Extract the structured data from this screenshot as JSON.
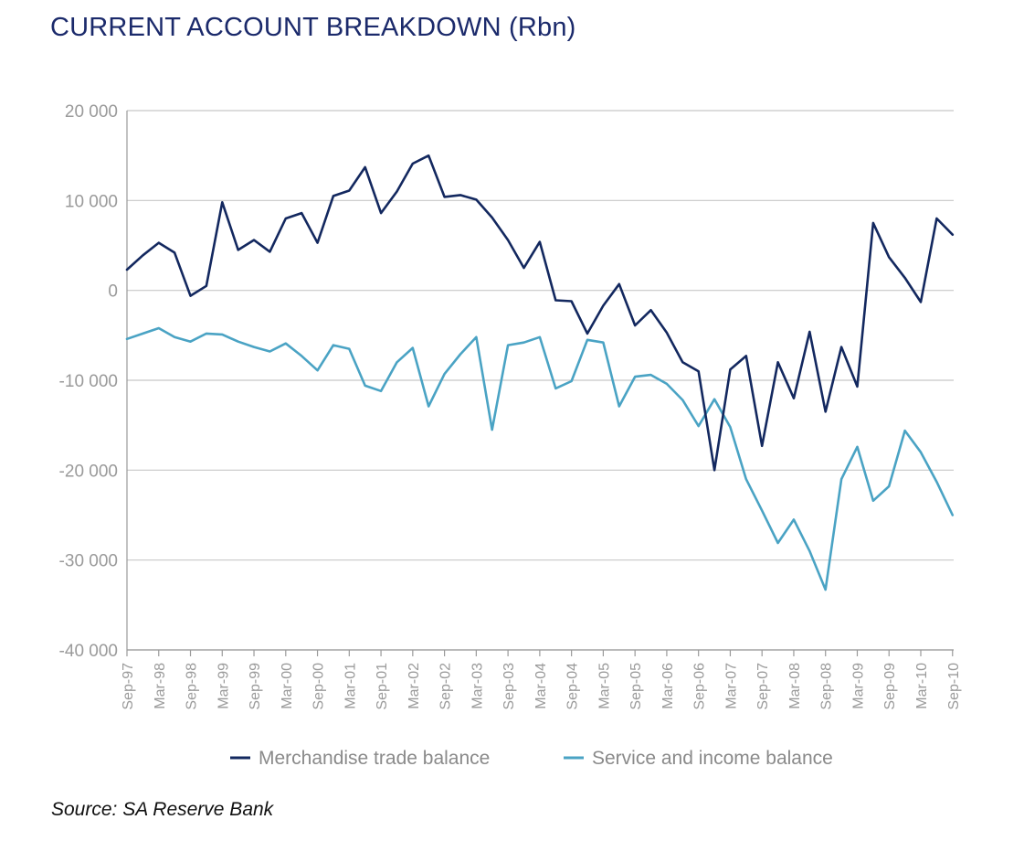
{
  "title": "CURRENT ACCOUNT BREAKDOWN (Rbn)",
  "source": "Source: SA Reserve Bank",
  "colors": {
    "title": "#1b2a6b",
    "merchandise": "#13285f",
    "service": "#4aa3c4",
    "grid": "#c8c8c8",
    "axis": "#9a9a9a"
  },
  "chart_data": {
    "type": "line",
    "title": "CURRENT ACCOUNT BREAKDOWN (Rbn)",
    "xlabel": "",
    "ylabel": "",
    "ylim": [
      -40000,
      20000
    ],
    "yticks": [
      20000,
      10000,
      0,
      -10000,
      -20000,
      -30000,
      -40000
    ],
    "ytick_labels": [
      "20 000",
      "10 000",
      "0",
      "-10 000",
      "-20 000",
      "-30 000",
      "-40 000"
    ],
    "xtick_labels": [
      "Sep-97",
      "Mar-98",
      "Sep-98",
      "Mar-99",
      "Sep-99",
      "Mar-00",
      "Sep-00",
      "Mar-01",
      "Sep-01",
      "Mar-02",
      "Sep-02",
      "Mar-03",
      "Sep-03",
      "Mar-04",
      "Sep-04",
      "Mar-05",
      "Sep-05",
      "Mar-06",
      "Sep-06",
      "Mar-07",
      "Sep-07",
      "Mar-08",
      "Sep-08",
      "Mar-09",
      "Sep-09",
      "Mar-10",
      "Sep-10"
    ],
    "x_start": "Sep-97",
    "frequency": "quarterly",
    "grid": true,
    "legend_position": "bottom",
    "series": [
      {
        "name": "Merchandise trade balance",
        "color": "#13285f",
        "values": [
          2300,
          3900,
          5300,
          4200,
          -600,
          500,
          9800,
          4500,
          5600,
          4300,
          8000,
          8600,
          5300,
          10500,
          11100,
          13700,
          8600,
          11000,
          14100,
          15000,
          10400,
          10600,
          10100,
          8100,
          5600,
          2500,
          5400,
          -1100,
          -1200,
          -4800,
          -1700,
          700,
          -3900,
          -2200,
          -4700,
          -8000,
          -9000,
          -20000,
          -8800,
          -7300,
          -17300,
          -8000,
          -12000,
          -4600,
          -13500,
          -6300,
          -10700,
          7500,
          3700,
          1400,
          -1300,
          8000,
          6200
        ]
      },
      {
        "name": "Service and income balance",
        "color": "#4aa3c4",
        "values": [
          -5400,
          -4800,
          -4200,
          -5200,
          -5700,
          -4800,
          -4900,
          -5700,
          -6300,
          -6800,
          -5900,
          -7300,
          -8900,
          -6100,
          -6500,
          -10600,
          -11200,
          -8000,
          -6400,
          -12900,
          -9300,
          -7100,
          -5200,
          -15500,
          -6100,
          -5800,
          -5200,
          -10900,
          -10100,
          -5500,
          -5800,
          -12900,
          -9600,
          -9400,
          -10400,
          -12200,
          -15100,
          -12100,
          -15200,
          -21000,
          -24500,
          -28100,
          -25500,
          -29000,
          -33300,
          -21000,
          -17400,
          -23400,
          -21800,
          -15600,
          -18000,
          -21300,
          -25000
        ]
      }
    ]
  }
}
